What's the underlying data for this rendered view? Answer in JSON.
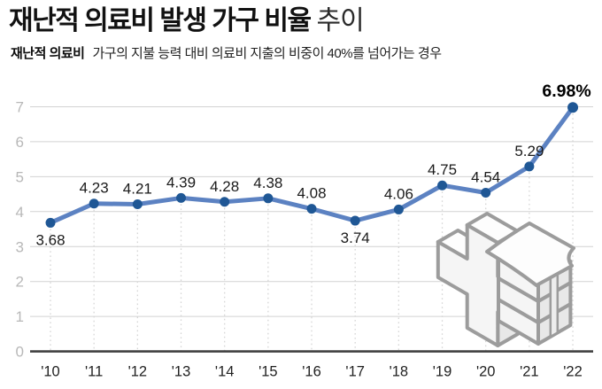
{
  "header": {
    "title_main": "재난적 의료비 발생 가구 비율",
    "title_suffix": "추이",
    "legend_term": "재난적 의료비",
    "legend_desc": "가구의 지불 능력 대비 의료비 지출의 비중이 40%를 넘어가는 경우"
  },
  "chart_data": {
    "type": "line",
    "title": "재난적 의료비 발생 가구 비율 추이",
    "unit": "%",
    "categories": [
      "'10",
      "'11",
      "'12",
      "'13",
      "'14",
      "'15",
      "'16",
      "'17",
      "'18",
      "'19",
      "'20",
      "'21",
      "'22"
    ],
    "values": [
      3.68,
      4.23,
      4.21,
      4.39,
      4.28,
      4.38,
      4.08,
      3.74,
      4.06,
      4.75,
      4.54,
      5.29,
      6.98
    ],
    "labels": [
      "3.68",
      "4.23",
      "4.21",
      "4.39",
      "4.28",
      "4.38",
      "4.08",
      "3.74",
      "4.06",
      "4.75",
      "4.54",
      "5.29",
      "6.98%"
    ],
    "label_positions": [
      "below",
      "above",
      "above",
      "above",
      "above",
      "above",
      "above",
      "below",
      "above",
      "above",
      "above",
      "above",
      "above"
    ],
    "ylim": [
      0,
      7
    ],
    "yticks": [
      0,
      1,
      2,
      3,
      4,
      5,
      6,
      7
    ],
    "grid": true,
    "legend_position": "none",
    "xlabel": "",
    "ylabel": "",
    "colors": {
      "line": "#5c82c2",
      "marker": "#1f5795",
      "grid": "#d2d2d2",
      "dotted_guide": "#d6d6d6",
      "axis": "#404040",
      "ytick_label": "#b8b8b8",
      "xtick_label": "#222222",
      "data_label": "#1a1a1a",
      "final_label": "#000000",
      "icon_stroke": "#9c9c9c"
    }
  }
}
